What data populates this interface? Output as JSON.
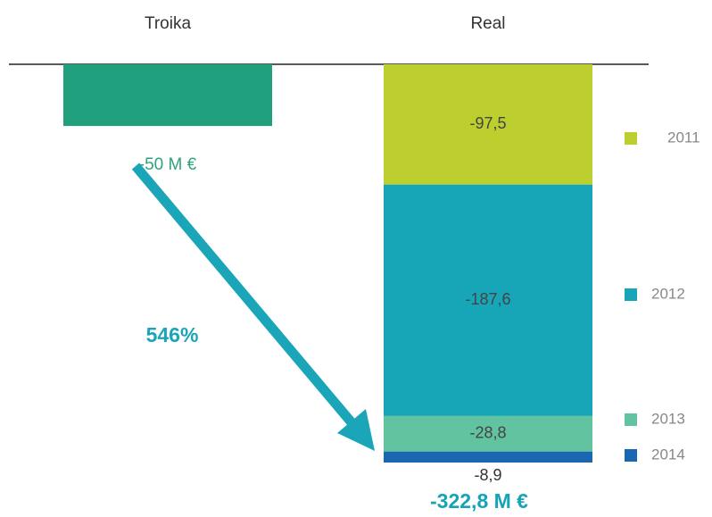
{
  "chart_data": {
    "type": "bar",
    "categories": [
      "Troika",
      "Real"
    ],
    "single": {
      "value": -50,
      "value_label": "-50 M €",
      "color": "#21a07d"
    },
    "series": [
      {
        "name": "2011",
        "color": "#bccf2f",
        "values": [
          null,
          -97.5
        ],
        "value_labels": [
          null,
          "-97,5"
        ]
      },
      {
        "name": "2012",
        "color": "#17a6b8",
        "values": [
          null,
          -187.6
        ],
        "value_labels": [
          null,
          "-187,6"
        ]
      },
      {
        "name": "2013",
        "color": "#62c3a0",
        "values": [
          null,
          -28.8
        ],
        "value_labels": [
          null,
          "-28,8"
        ]
      },
      {
        "name": "2014",
        "color": "#1a66b0",
        "values": [
          null,
          -8.9
        ],
        "value_labels": [
          null,
          "-8,9"
        ]
      }
    ],
    "annotations": [
      "546%",
      "-322,8 M €"
    ]
  }
}
